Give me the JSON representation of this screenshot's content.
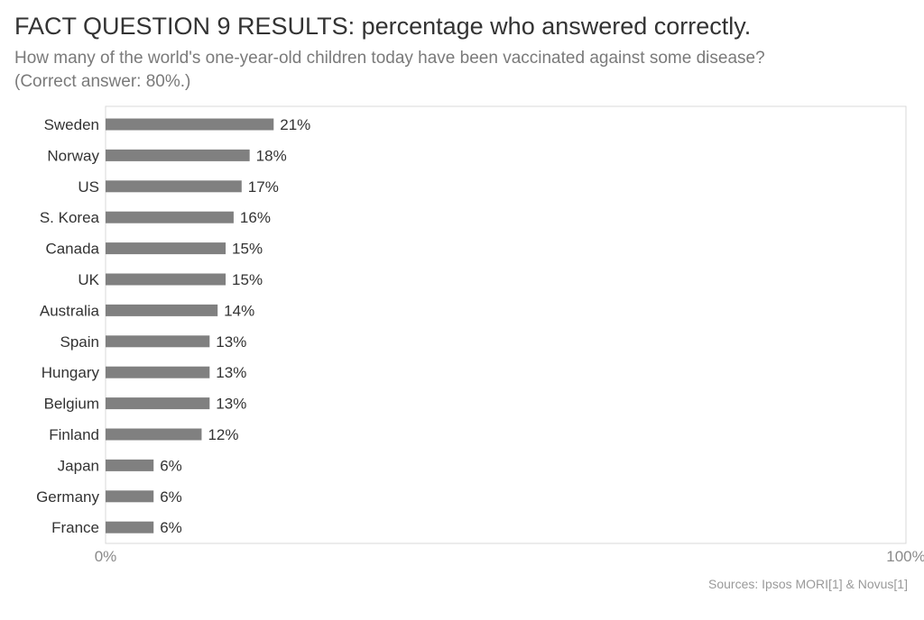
{
  "header": {
    "title": "FACT QUESTION 9 RESULTS: percentage who answered correctly.",
    "subtitle_line1": "How many of the world's one-year-old children today have been vaccinated against some disease?",
    "subtitle_line2": "(Correct answer: 80%.)"
  },
  "footer": {
    "source": "Sources: Ipsos MORI[1] & Novus[1]"
  },
  "chart_data": {
    "type": "bar",
    "orientation": "horizontal",
    "categories": [
      "Sweden",
      "Norway",
      "US",
      "S. Korea",
      "Canada",
      "UK",
      "Australia",
      "Spain",
      "Hungary",
      "Belgium",
      "Finland",
      "Japan",
      "Germany",
      "France"
    ],
    "values": [
      21,
      18,
      17,
      16,
      15,
      15,
      14,
      13,
      13,
      13,
      12,
      6,
      6,
      6
    ],
    "value_labels": [
      "21%",
      "18%",
      "17%",
      "16%",
      "15%",
      "15%",
      "14%",
      "13%",
      "13%",
      "13%",
      "12%",
      "6%",
      "6%",
      "6%"
    ],
    "xlim": [
      0,
      100
    ],
    "x_tick_labels": [
      "0%",
      "100%"
    ],
    "grid": false,
    "legend": "none",
    "bar_color": "#808080",
    "frame_color": "#d9d9d9"
  }
}
